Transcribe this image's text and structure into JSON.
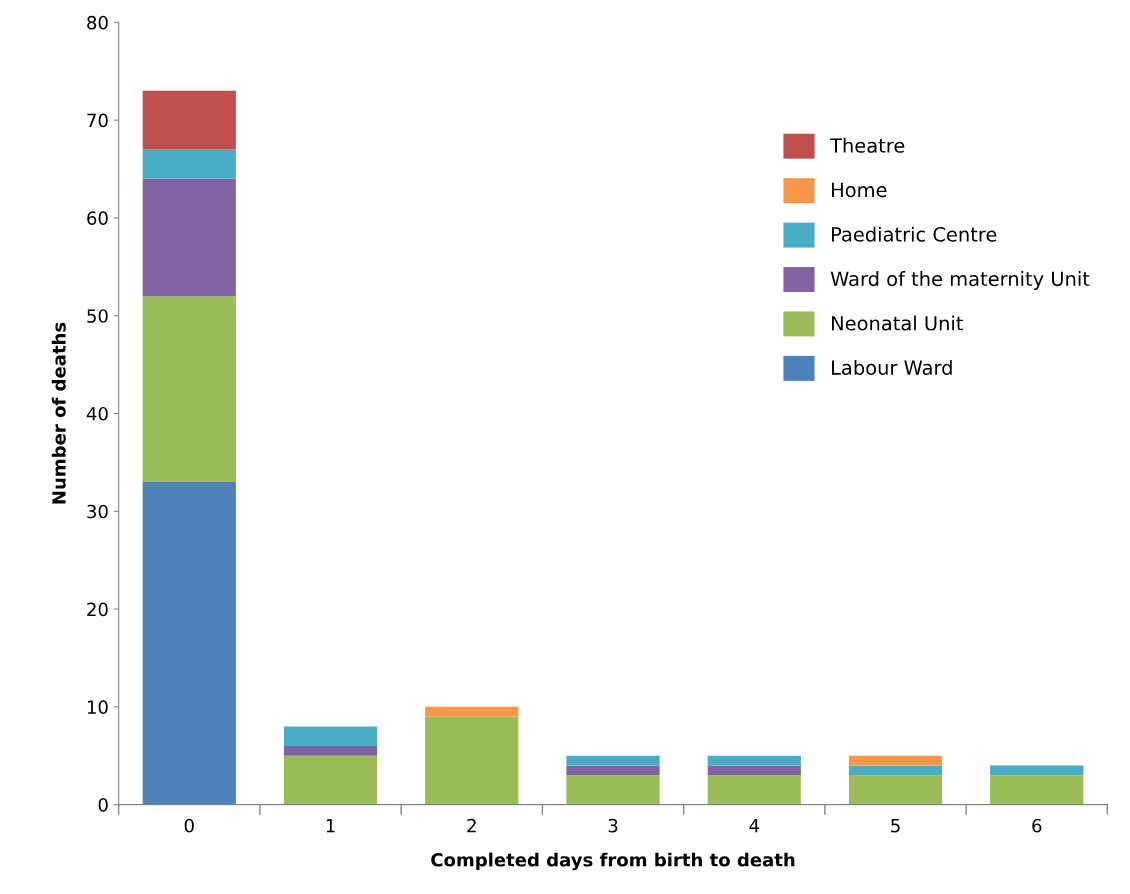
{
  "chart_data": {
    "type": "bar",
    "stacked": true,
    "xlabel": "Completed days from birth to death",
    "ylabel": "Number of deaths",
    "categories": [
      "0",
      "1",
      "2",
      "3",
      "4",
      "5",
      "6"
    ],
    "series": [
      {
        "name": "Labour Ward",
        "color": "#4f81bd",
        "values": [
          33,
          0,
          0,
          0,
          0,
          0,
          0
        ]
      },
      {
        "name": "Neonatal Unit",
        "color": "#9bbb59",
        "values": [
          19,
          5,
          9,
          3,
          3,
          3,
          3
        ]
      },
      {
        "name": "Ward of the maternity Unit",
        "color": "#8064a2",
        "values": [
          12,
          1,
          0,
          1,
          1,
          0,
          0
        ]
      },
      {
        "name": "Paediatric Centre",
        "color": "#4bacc6",
        "values": [
          3,
          2,
          0,
          1,
          1,
          1,
          1
        ]
      },
      {
        "name": "Home",
        "color": "#f79646",
        "values": [
          0,
          0,
          1,
          0,
          0,
          1,
          0
        ]
      },
      {
        "name": "Theatre",
        "color": "#c0504d",
        "values": [
          6,
          0,
          0,
          0,
          0,
          0,
          0
        ]
      }
    ],
    "ylim": [
      0,
      80
    ],
    "yticks": [
      0,
      10,
      20,
      30,
      40,
      50,
      60,
      70,
      80
    ],
    "grid": false,
    "legend": "top right"
  }
}
